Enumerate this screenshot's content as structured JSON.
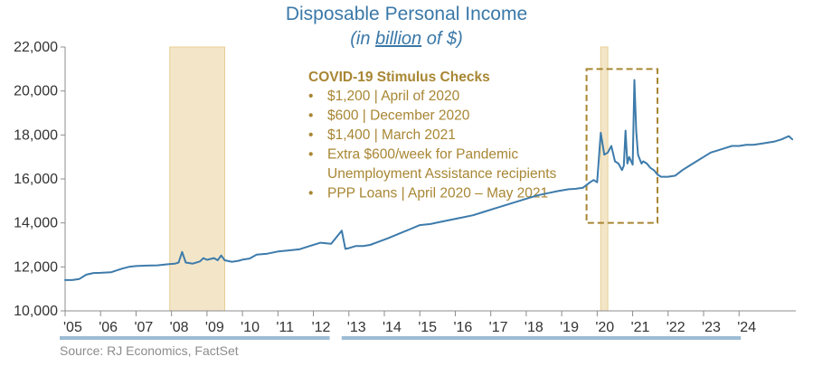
{
  "colors": {
    "series": "#3d7bab",
    "recession": "#f3e6c8",
    "recession_border": "#e8cf94",
    "annotation": "#a88633",
    "axis": "#8c8c8c",
    "title": "#3a78a8"
  },
  "header": {
    "title": "Disposable Personal Income",
    "subtitle_pre": "(in ",
    "subtitle_unit": "billion",
    "subtitle_post": " of $)"
  },
  "annotation": {
    "heading": "COVID-19 Stimulus Checks",
    "items": [
      "$1,200 | April of 2020",
      "$600 | December 2020",
      "$1,400 | March 2021",
      "Extra $600/week for Pandemic",
      "Unemployment Assistance recipients",
      "PPP Loans | April 2020 – May 2021"
    ],
    "bullet": "•"
  },
  "source": "Source: RJ Economics, FactSet",
  "chart_data": {
    "type": "line",
    "title": "Disposable Personal Income",
    "subtitle": "(in billion of $)",
    "x_tick_labels": [
      "'05",
      "'06",
      "'07",
      "'08",
      "'09",
      "'10",
      "'11",
      "'12",
      "'13",
      "'14",
      "'15",
      "'16",
      "'17",
      "'18",
      "'19",
      "'20",
      "'21",
      "'22",
      "'23",
      "'24"
    ],
    "y_tick_labels": [
      "10,000",
      "12,000",
      "14,000",
      "16,000",
      "18,000",
      "20,000",
      "22,000"
    ],
    "xlim": [
      2005.0,
      2025.6
    ],
    "ylim": [
      10000,
      22000
    ],
    "recession_shading": [
      [
        2007.95,
        2009.5
      ],
      [
        2020.1,
        2020.3
      ]
    ],
    "highlight_box": {
      "x": [
        2019.7,
        2021.7
      ],
      "y": [
        14000,
        21000
      ]
    },
    "series": [
      {
        "x": [
          2005.0,
          2005.2,
          2005.4,
          2005.6,
          2005.8,
          2006.0,
          2006.3,
          2006.6,
          2006.8,
          2007.0,
          2007.3,
          2007.6,
          2007.9,
          2008.1,
          2008.2,
          2008.3,
          2008.4,
          2008.6,
          2008.8,
          2008.9,
          2009.0,
          2009.2,
          2009.3,
          2009.4,
          2009.5,
          2009.7,
          2009.9,
          2010.0,
          2010.2,
          2010.4,
          2010.7,
          2011.0,
          2011.3,
          2011.6,
          2011.9,
          2012.2,
          2012.5,
          2012.8,
          2012.9,
          2013.0,
          2013.2,
          2013.4,
          2013.6,
          2013.8,
          2014.1,
          2014.4,
          2014.7,
          2015.0,
          2015.3,
          2015.6,
          2015.9,
          2016.2,
          2016.5,
          2016.8,
          2017.1,
          2017.4,
          2017.7,
          2018.0,
          2018.3,
          2018.6,
          2018.9,
          2019.2,
          2019.4,
          2019.6,
          2019.8,
          2019.9,
          2020.0,
          2020.1,
          2020.2,
          2020.3,
          2020.4,
          2020.5,
          2020.6,
          2020.7,
          2020.75,
          2020.8,
          2020.85,
          2020.9,
          2021.0,
          2021.05,
          2021.1,
          2021.15,
          2021.2,
          2021.25,
          2021.3,
          2021.4,
          2021.5,
          2021.6,
          2021.7,
          2021.8,
          2022.0,
          2022.2,
          2022.4,
          2022.6,
          2022.8,
          2023.0,
          2023.2,
          2023.4,
          2023.6,
          2023.8,
          2024.0,
          2024.2,
          2024.4,
          2024.6,
          2024.8,
          2025.0,
          2025.2,
          2025.4,
          2025.5
        ],
        "values": [
          11400,
          11400,
          11450,
          11650,
          11720,
          11730,
          11760,
          11920,
          12000,
          12040,
          12060,
          12070,
          12120,
          12150,
          12200,
          12680,
          12200,
          12150,
          12250,
          12400,
          12320,
          12400,
          12300,
          12520,
          12300,
          12230,
          12280,
          12330,
          12380,
          12560,
          12600,
          12700,
          12750,
          12800,
          12950,
          13100,
          13050,
          13650,
          12820,
          12850,
          12950,
          12950,
          13000,
          13120,
          13300,
          13500,
          13700,
          13900,
          13950,
          14050,
          14150,
          14250,
          14350,
          14500,
          14650,
          14800,
          14950,
          15100,
          15250,
          15350,
          15450,
          15530,
          15550,
          15600,
          15850,
          15950,
          15850,
          18100,
          17100,
          17200,
          17500,
          16800,
          16700,
          16400,
          16600,
          18200,
          16700,
          17000,
          16650,
          20500,
          18200,
          17100,
          16900,
          16700,
          16800,
          16700,
          16500,
          16400,
          16200,
          16100,
          16100,
          16150,
          16400,
          16600,
          16800,
          17000,
          17200,
          17300,
          17400,
          17500,
          17500,
          17550,
          17550,
          17600,
          17650,
          17700,
          17800,
          17950,
          17800
        ]
      }
    ]
  }
}
